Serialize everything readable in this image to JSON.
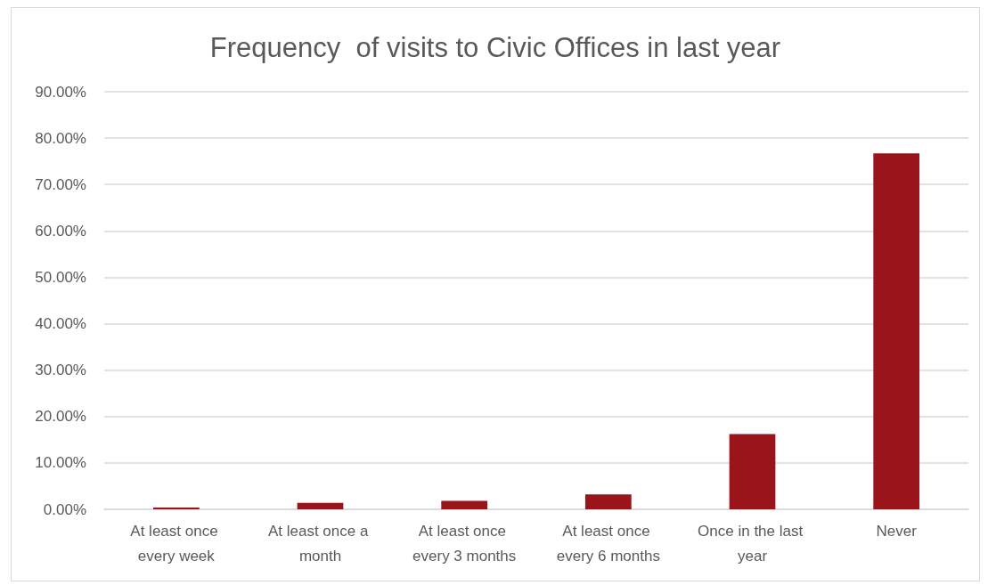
{
  "chart_data": {
    "type": "bar",
    "title": "Frequency  of visits to Civic Offices in last year",
    "categories": [
      "At least once every week",
      "At least once a month",
      "At least once every 3 months",
      "At least once every 6 months",
      "Once in the last year",
      "Never"
    ],
    "values": [
      0.4,
      1.4,
      1.8,
      3.2,
      16.2,
      76.7
    ],
    "color": "#9a141c",
    "ylim": [
      0,
      90
    ],
    "yticks": [
      {
        "value": 0,
        "label": "0.00%"
      },
      {
        "value": 10,
        "label": "10.00%"
      },
      {
        "value": 20,
        "label": "20.00%"
      },
      {
        "value": 30,
        "label": "30.00%"
      },
      {
        "value": 40,
        "label": "40.00%"
      },
      {
        "value": 50,
        "label": "50.00%"
      },
      {
        "value": 60,
        "label": "60.00%"
      },
      {
        "value": 70,
        "label": "70.00%"
      },
      {
        "value": 80,
        "label": "80.00%"
      },
      {
        "value": 90,
        "label": "90.00%"
      }
    ],
    "grid": "y"
  }
}
